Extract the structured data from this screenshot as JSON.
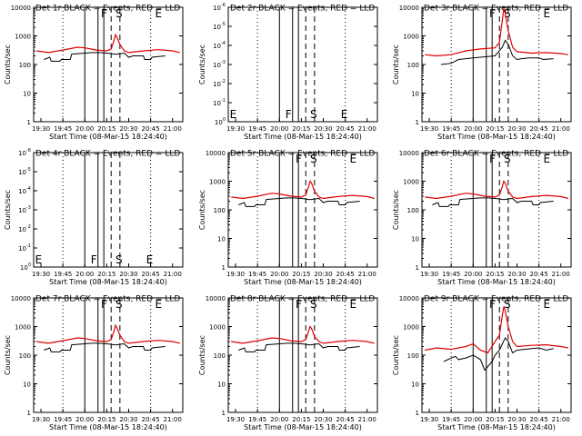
{
  "colors": {
    "events": "#000000",
    "lld": "#e00000",
    "background": "#ffffff"
  },
  "chart_data": [
    {
      "type": "line",
      "title": "Det 1r BLACK = Events, RED = LLD",
      "xlabel": "Start Time (08-Mar-15 18:24:40)",
      "ylabel": "Counts/sec",
      "xticks": [
        "19:30",
        "19:45",
        "20:00",
        "20:15",
        "20:30",
        "20:45",
        "21:00"
      ],
      "yticks": [
        "1",
        "10",
        "100",
        "1000",
        "10000"
      ],
      "ylog": true,
      "ylim": [
        1,
        10000
      ],
      "markers": [
        "F",
        "S",
        "E"
      ],
      "series": [
        {
          "name": "Events",
          "x": [
            "19:32",
            "19:36",
            "19:37",
            "19:43",
            "19:44",
            "19:50",
            "19:51",
            "20:00",
            "20:05",
            "20:10",
            "20:15",
            "20:18",
            "20:20",
            "20:22",
            "20:24",
            "20:27",
            "20:30",
            "20:33",
            "20:40",
            "20:41",
            "20:45",
            "20:46",
            "20:55"
          ],
          "y": [
            150,
            180,
            130,
            130,
            150,
            150,
            230,
            250,
            260,
            260,
            250,
            240,
            230,
            230,
            240,
            250,
            180,
            200,
            200,
            150,
            150,
            180,
            200
          ]
        },
        {
          "name": "LLD",
          "x": [
            "19:27",
            "19:35",
            "19:45",
            "19:55",
            "20:00",
            "20:08",
            "20:15",
            "20:18",
            "20:20",
            "20:21",
            "20:22",
            "20:24",
            "20:27",
            "20:30",
            "20:40",
            "20:50",
            "21:00",
            "21:05"
          ],
          "y": [
            300,
            260,
            320,
            400,
            380,
            320,
            300,
            350,
            700,
            1100,
            900,
            500,
            300,
            260,
            300,
            330,
            300,
            260
          ]
        }
      ]
    },
    {
      "type": "line",
      "title": "Det 2r BLACK = Events, RED = LLD",
      "xlabel": "Start Time (08-Mar-15 18:24:40)",
      "ylabel": "Counts/sec",
      "xticks": [
        "19:30",
        "19:45",
        "20:00",
        "20:15",
        "20:30",
        "20:45",
        "21:00"
      ],
      "yticks": [
        "10^0",
        "10^-1",
        "10^-2",
        "10^-3",
        "10^-4",
        "10^-5",
        "10^-6"
      ],
      "ylog": true,
      "ylim": [
        1,
        1e-06
      ],
      "markers": [
        "E",
        "F",
        "S",
        "E"
      ],
      "series": []
    },
    {
      "type": "line",
      "title": "Det 3r BLACK = Events, RED = LLD",
      "xlabel": "Start Time (08-Mar-15 18:24:40)",
      "ylabel": "Counts/sec",
      "xticks": [
        "19:30",
        "19:45",
        "20:00",
        "20:15",
        "20:30",
        "20:45",
        "21:00"
      ],
      "yticks": [
        "1",
        "10",
        "100",
        "1000",
        "10000"
      ],
      "ylog": true,
      "ylim": [
        1,
        10000
      ],
      "markers": [
        "F",
        "S",
        "E"
      ],
      "series": [
        {
          "name": "Events",
          "x": [
            "19:38",
            "19:45",
            "19:50",
            "19:55",
            "20:00",
            "20:05",
            "20:10",
            "20:15",
            "20:20",
            "20:22",
            "20:24",
            "20:27",
            "20:30",
            "20:33",
            "20:38",
            "20:45",
            "20:48",
            "20:55"
          ],
          "y": [
            100,
            110,
            150,
            160,
            170,
            180,
            190,
            200,
            400,
            700,
            500,
            200,
            150,
            160,
            170,
            170,
            150,
            160
          ]
        },
        {
          "name": "LLD",
          "x": [
            "19:27",
            "19:35",
            "19:45",
            "19:55",
            "20:05",
            "20:15",
            "20:18",
            "20:20",
            "20:21",
            "20:22",
            "20:24",
            "20:27",
            "20:30",
            "20:40",
            "20:50",
            "21:00",
            "21:05"
          ],
          "y": [
            220,
            200,
            220,
            300,
            350,
            380,
            600,
            3500,
            9000,
            6000,
            1500,
            400,
            280,
            250,
            260,
            240,
            220
          ]
        }
      ]
    },
    {
      "type": "line",
      "title": "Det 4r BLACK = Events, RED = LLD",
      "xlabel": "Start Time (08-Mar-15 18:24:40)",
      "ylabel": "Counts/sec",
      "xticks": [
        "19:30",
        "19:45",
        "20:00",
        "20:15",
        "20:30",
        "20:45",
        "21:00"
      ],
      "yticks": [
        "10^0",
        "10^-1",
        "10^-2",
        "10^-3",
        "10^-4",
        "10^-5",
        "10^-6"
      ],
      "ylog": true,
      "ylim": [
        1,
        1e-06
      ],
      "markers": [
        "E",
        "F",
        "S",
        "E"
      ],
      "series": []
    },
    {
      "type": "line",
      "title": "Det 5r BLACK = Events, RED = LLD",
      "xlabel": "Start Time (08-Mar-15 18:24:40)",
      "ylabel": "Counts/sec",
      "xticks": [
        "19:30",
        "19:45",
        "20:00",
        "20:15",
        "20:30",
        "20:45",
        "21:00"
      ],
      "yticks": [
        "1",
        "10",
        "100",
        "1000",
        "10000"
      ],
      "ylog": true,
      "ylim": [
        1,
        10000
      ],
      "markers": [
        "F",
        "S",
        "E"
      ],
      "series": [
        {
          "name": "Events",
          "x": [
            "19:32",
            "19:36",
            "19:37",
            "19:43",
            "19:44",
            "19:50",
            "19:51",
            "20:00",
            "20:05",
            "20:10",
            "20:15",
            "20:18",
            "20:20",
            "20:22",
            "20:24",
            "20:27",
            "20:30",
            "20:33",
            "20:40",
            "20:41",
            "20:45",
            "20:46",
            "20:55"
          ],
          "y": [
            150,
            180,
            130,
            130,
            150,
            150,
            230,
            250,
            260,
            260,
            250,
            240,
            230,
            230,
            240,
            250,
            180,
            200,
            200,
            150,
            150,
            180,
            200
          ]
        },
        {
          "name": "LLD",
          "x": [
            "19:27",
            "19:35",
            "19:45",
            "19:55",
            "20:00",
            "20:08",
            "20:15",
            "20:18",
            "20:20",
            "20:21",
            "20:22",
            "20:24",
            "20:27",
            "20:30",
            "20:40",
            "20:50",
            "21:00",
            "21:05"
          ],
          "y": [
            280,
            250,
            300,
            380,
            360,
            300,
            280,
            330,
            650,
            1000,
            850,
            450,
            280,
            250,
            290,
            320,
            290,
            250
          ]
        }
      ]
    },
    {
      "type": "line",
      "title": "Det 6r BLACK = Events, RED = LLD",
      "xlabel": "Start Time (08-Mar-15 18:24:40)",
      "ylabel": "Counts/sec",
      "xticks": [
        "19:30",
        "19:45",
        "20:00",
        "20:15",
        "20:30",
        "20:45",
        "21:00"
      ],
      "yticks": [
        "1",
        "10",
        "100",
        "1000",
        "10000"
      ],
      "ylog": true,
      "ylim": [
        1,
        10000
      ],
      "markers": [
        "F",
        "S",
        "E"
      ],
      "series": [
        {
          "name": "Events",
          "x": [
            "19:32",
            "19:36",
            "19:37",
            "19:43",
            "19:44",
            "19:50",
            "19:51",
            "20:00",
            "20:05",
            "20:10",
            "20:15",
            "20:18",
            "20:20",
            "20:22",
            "20:24",
            "20:27",
            "20:30",
            "20:33",
            "20:40",
            "20:41",
            "20:45",
            "20:46",
            "20:55"
          ],
          "y": [
            150,
            180,
            130,
            130,
            150,
            150,
            230,
            250,
            260,
            260,
            250,
            240,
            230,
            230,
            240,
            250,
            180,
            200,
            200,
            150,
            150,
            180,
            200
          ]
        },
        {
          "name": "LLD",
          "x": [
            "19:27",
            "19:35",
            "19:45",
            "19:55",
            "20:00",
            "20:08",
            "20:15",
            "20:18",
            "20:20",
            "20:21",
            "20:22",
            "20:24",
            "20:27",
            "20:30",
            "20:40",
            "20:50",
            "21:00",
            "21:05"
          ],
          "y": [
            280,
            250,
            300,
            380,
            360,
            300,
            280,
            330,
            650,
            1000,
            850,
            450,
            280,
            250,
            290,
            320,
            290,
            250
          ]
        }
      ]
    },
    {
      "type": "line",
      "title": "Det 7r BLACK = Events, RED = LLD",
      "xlabel": "Start Time (08-Mar-15 18:24:40)",
      "ylabel": "Counts/sec",
      "xticks": [
        "19:30",
        "19:45",
        "20:00",
        "20:15",
        "20:30",
        "20:45",
        "21:00"
      ],
      "yticks": [
        "1",
        "10",
        "100",
        "1000",
        "10000"
      ],
      "ylog": true,
      "ylim": [
        1,
        10000
      ],
      "markers": [
        "F",
        "S",
        "E"
      ],
      "series": [
        {
          "name": "Events",
          "x": [
            "19:32",
            "19:36",
            "19:37",
            "19:43",
            "19:44",
            "19:50",
            "19:51",
            "20:00",
            "20:05",
            "20:10",
            "20:15",
            "20:18",
            "20:20",
            "20:22",
            "20:24",
            "20:27",
            "20:30",
            "20:33",
            "20:40",
            "20:41",
            "20:45",
            "20:46",
            "20:55"
          ],
          "y": [
            150,
            180,
            130,
            130,
            150,
            150,
            230,
            250,
            260,
            260,
            250,
            240,
            230,
            230,
            240,
            250,
            180,
            200,
            200,
            150,
            150,
            180,
            200
          ]
        },
        {
          "name": "LLD",
          "x": [
            "19:27",
            "19:35",
            "19:45",
            "19:55",
            "20:00",
            "20:08",
            "20:15",
            "20:18",
            "20:20",
            "20:21",
            "20:22",
            "20:24",
            "20:27",
            "20:30",
            "20:40",
            "20:50",
            "21:00",
            "21:05"
          ],
          "y": [
            300,
            260,
            320,
            400,
            380,
            320,
            300,
            350,
            700,
            1100,
            900,
            500,
            300,
            260,
            300,
            330,
            300,
            260
          ]
        }
      ]
    },
    {
      "type": "line",
      "title": "Det 8r BLACK = Events, RED = LLD",
      "xlabel": "Start Time (08-Mar-15 18:24:40)",
      "ylabel": "Counts/sec",
      "xticks": [
        "19:30",
        "19:45",
        "20:00",
        "20:15",
        "20:30",
        "20:45",
        "21:00"
      ],
      "yticks": [
        "1",
        "10",
        "100",
        "1000",
        "10000"
      ],
      "ylog": true,
      "ylim": [
        1,
        10000
      ],
      "markers": [
        "F",
        "S",
        "E"
      ],
      "series": [
        {
          "name": "Events",
          "x": [
            "19:32",
            "19:36",
            "19:37",
            "19:43",
            "19:44",
            "19:50",
            "19:51",
            "20:00",
            "20:05",
            "20:10",
            "20:15",
            "20:18",
            "20:20",
            "20:22",
            "20:24",
            "20:27",
            "20:30",
            "20:33",
            "20:40",
            "20:41",
            "20:45",
            "20:46",
            "20:55"
          ],
          "y": [
            150,
            180,
            130,
            130,
            150,
            150,
            230,
            250,
            260,
            260,
            250,
            240,
            230,
            230,
            240,
            250,
            180,
            200,
            200,
            150,
            150,
            180,
            200
          ]
        },
        {
          "name": "LLD",
          "x": [
            "19:27",
            "19:35",
            "19:45",
            "19:55",
            "20:00",
            "20:08",
            "20:15",
            "20:18",
            "20:20",
            "20:21",
            "20:22",
            "20:24",
            "20:27",
            "20:30",
            "20:40",
            "20:50",
            "21:00",
            "21:05"
          ],
          "y": [
            300,
            260,
            320,
            400,
            380,
            320,
            300,
            350,
            700,
            1000,
            850,
            450,
            300,
            260,
            300,
            330,
            300,
            260
          ]
        }
      ]
    },
    {
      "type": "line",
      "title": "Det 9r BLACK = Events, RED = LLD",
      "xlabel": "Start Time (08-Mar-15 18:24:40)",
      "ylabel": "Counts/sec",
      "xticks": [
        "19:30",
        "19:45",
        "20:00",
        "20:15",
        "20:30",
        "20:45",
        "21:00"
      ],
      "yticks": [
        "1",
        "10",
        "100",
        "1000",
        "10000"
      ],
      "ylog": true,
      "ylim": [
        1,
        10000
      ],
      "markers": [
        "F",
        "S",
        "E"
      ],
      "series": [
        {
          "name": "Events",
          "x": [
            "19:40",
            "19:45",
            "19:48",
            "19:50",
            "19:55",
            "20:00",
            "20:05",
            "20:08",
            "20:10",
            "20:13",
            "20:15",
            "20:18",
            "20:20",
            "20:22",
            "20:24",
            "20:27",
            "20:30",
            "20:35",
            "20:40",
            "20:45",
            "20:50",
            "20:55"
          ],
          "y": [
            60,
            80,
            90,
            70,
            80,
            100,
            70,
            30,
            40,
            60,
            100,
            150,
            250,
            400,
            300,
            120,
            150,
            160,
            170,
            180,
            150,
            170
          ]
        },
        {
          "name": "LLD",
          "x": [
            "19:27",
            "19:35",
            "19:45",
            "19:55",
            "20:00",
            "20:05",
            "20:10",
            "20:15",
            "20:18",
            "20:20",
            "20:21",
            "20:22",
            "20:24",
            "20:27",
            "20:30",
            "20:40",
            "20:50",
            "21:00",
            "21:05"
          ],
          "y": [
            150,
            180,
            160,
            200,
            250,
            150,
            120,
            300,
            500,
            2500,
            5000,
            3500,
            1000,
            300,
            200,
            220,
            230,
            200,
            180
          ]
        }
      ]
    }
  ]
}
